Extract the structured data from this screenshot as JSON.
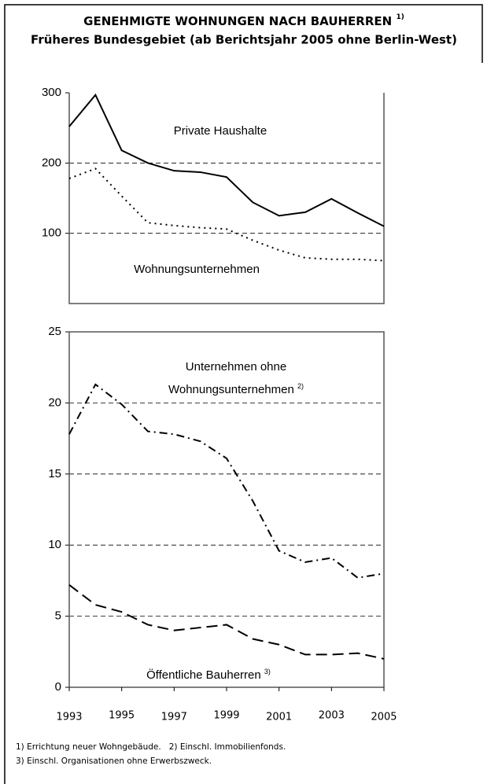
{
  "title": "GENEHMIGTE WOHNUNGEN NACH BAUHERREN",
  "title_note": "1)",
  "subtitle": "Früheres Bundesgebiet (ab Berichtsjahr 2005 ohne Berlin-West)",
  "chart_data": [
    {
      "type": "line",
      "x": [
        1993,
        1994,
        1995,
        1996,
        1997,
        1998,
        1999,
        2000,
        2001,
        2002,
        2003,
        2004,
        2005
      ],
      "xlim": [
        1993,
        2005
      ],
      "ylim": [
        0,
        300
      ],
      "yticks": [
        100,
        200,
        300
      ],
      "grid": true,
      "series": [
        {
          "name": "Private Haushalte",
          "color": "#000000",
          "style": "solid",
          "values": [
            252,
            297,
            218,
            200,
            189,
            187,
            180,
            144,
            125,
            130,
            149,
            129,
            110
          ]
        },
        {
          "name": "Wohnungsunternehmen",
          "color": "#000000",
          "style": "dotted",
          "values": [
            178,
            192,
            153,
            115,
            111,
            108,
            106,
            90,
            76,
            65,
            63,
            63,
            61
          ]
        }
      ]
    },
    {
      "type": "line",
      "x": [
        1993,
        1994,
        1995,
        1996,
        1997,
        1998,
        1999,
        2000,
        2001,
        2002,
        2003,
        2004,
        2005
      ],
      "xlim": [
        1993,
        2005
      ],
      "xticks": [
        1993,
        1995,
        1997,
        1999,
        2001,
        2003,
        2005
      ],
      "ylim": [
        0,
        25
      ],
      "yticks": [
        0,
        5,
        10,
        15,
        20,
        25
      ],
      "grid": true,
      "series": [
        {
          "name": "Unternehmen ohne Wohnungsunternehmen",
          "note": "2)",
          "color": "#000000",
          "style": "dashdot",
          "values": [
            17.8,
            21.3,
            19.9,
            18.0,
            17.8,
            17.3,
            16.1,
            13.1,
            9.6,
            8.8,
            9.1,
            7.7,
            8.0
          ]
        },
        {
          "name": "Öffentliche Bauherren",
          "note": "3)",
          "color": "#000000",
          "style": "dashed",
          "values": [
            7.2,
            5.8,
            5.3,
            4.4,
            4.0,
            4.2,
            4.4,
            3.4,
            3.0,
            2.3,
            2.3,
            2.4,
            2.0
          ]
        }
      ]
    }
  ],
  "footnotes": [
    "1) Errichtung neuer Wohngebäude.   2) Einschl. Immobilienfonds.",
    "3) Einschl. Organisationen ohne Erwerbszweck."
  ]
}
